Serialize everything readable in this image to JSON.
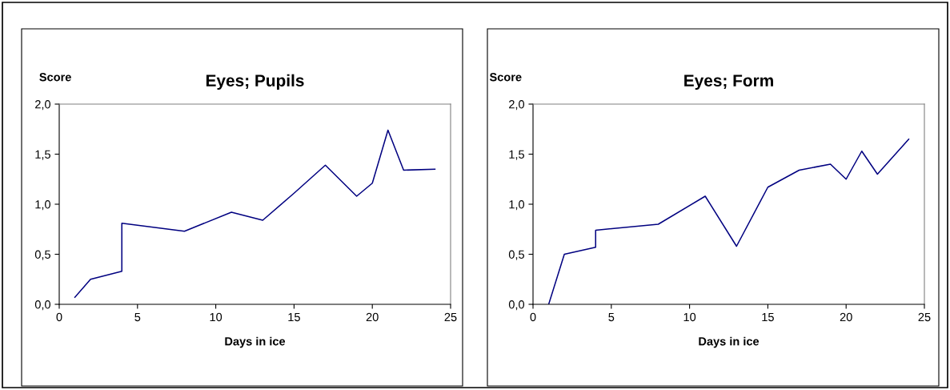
{
  "chart_data": [
    {
      "type": "line",
      "title": "Eyes; Pupils",
      "xlabel": "Days in ice",
      "ylabel": "Score",
      "x": [
        1,
        2,
        4,
        4,
        8,
        11,
        13,
        15,
        17,
        19,
        20,
        21,
        22,
        24
      ],
      "series": [
        {
          "color": "#000080",
          "values": [
            0.07,
            0.25,
            0.33,
            0.81,
            0.73,
            0.92,
            0.84,
            1.11,
            1.39,
            1.08,
            1.21,
            1.74,
            1.34,
            1.35
          ]
        }
      ],
      "xlim": [
        0,
        25
      ],
      "xticks": [
        0,
        5,
        10,
        15,
        20,
        25
      ],
      "ylim": [
        0,
        2
      ],
      "yticks": [
        {
          "value": 0,
          "label": "0,0"
        },
        {
          "value": 0.5,
          "label": "0,5"
        },
        {
          "value": 1,
          "label": "1,0"
        },
        {
          "value": 1.5,
          "label": "1,5"
        },
        {
          "value": 2,
          "label": "2,0"
        }
      ],
      "grid": false,
      "marker": "none",
      "line_style": "solid"
    },
    {
      "type": "line",
      "title": "Eyes; Form",
      "xlabel": "Days in ice",
      "ylabel": "Score",
      "x": [
        1,
        2,
        4,
        4,
        8,
        11,
        13,
        15,
        17,
        19,
        20,
        21,
        22,
        24
      ],
      "series": [
        {
          "color": "#000080",
          "values": [
            0.0,
            0.5,
            0.57,
            0.74,
            0.8,
            1.08,
            0.58,
            1.17,
            1.34,
            1.4,
            1.25,
            1.53,
            1.3,
            1.65
          ]
        }
      ],
      "xlim": [
        0,
        25
      ],
      "xticks": [
        0,
        5,
        10,
        15,
        20,
        25
      ],
      "ylim": [
        0,
        2
      ],
      "yticks": [
        {
          "value": 0,
          "label": "0,0"
        },
        {
          "value": 0.5,
          "label": "0,5"
        },
        {
          "value": 1,
          "label": "1,0"
        },
        {
          "value": 1.5,
          "label": "1,5"
        },
        {
          "value": 2,
          "label": "2,0"
        }
      ],
      "grid": false,
      "marker": "none",
      "line_style": "solid"
    }
  ]
}
